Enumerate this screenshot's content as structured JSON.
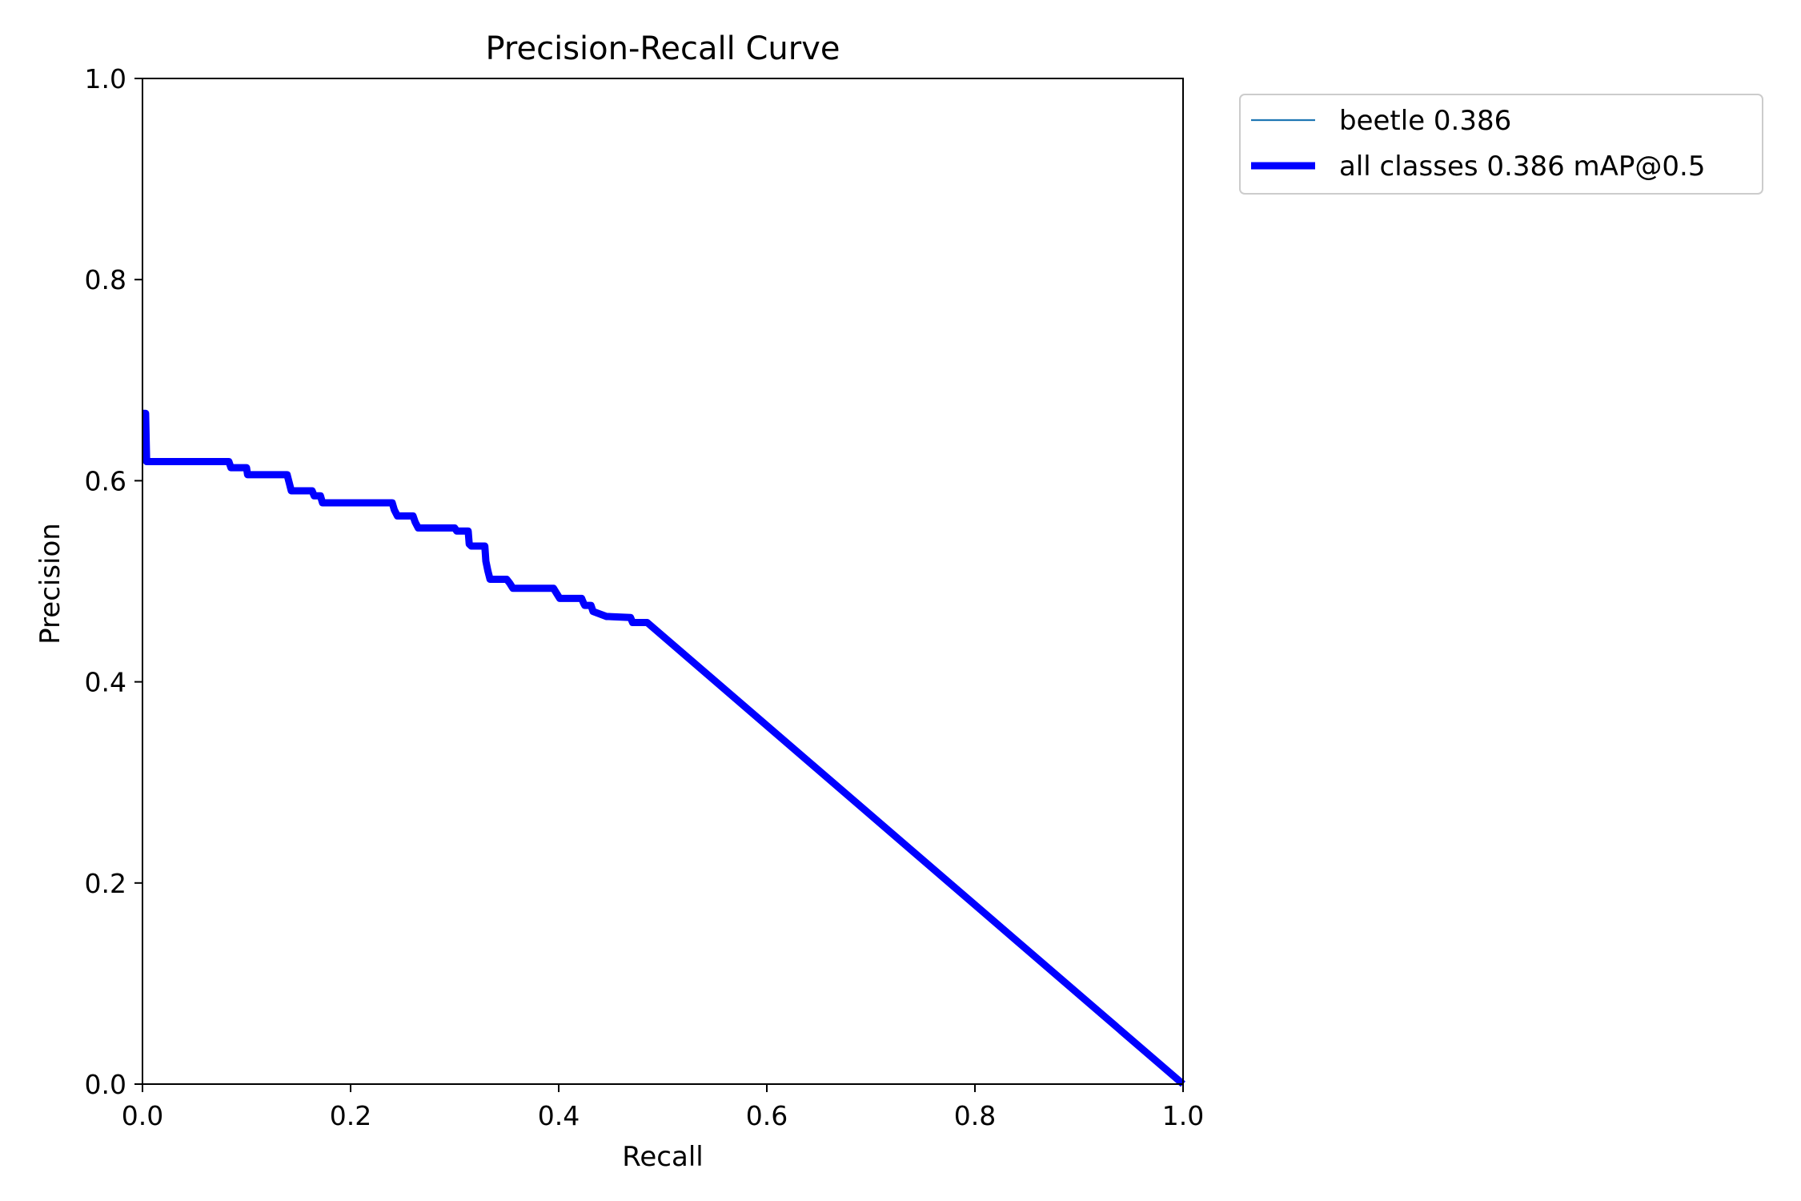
{
  "chart_data": {
    "type": "line",
    "title": "Precision-Recall Curve",
    "xlabel": "Recall",
    "ylabel": "Precision",
    "xlim": [
      0,
      1
    ],
    "ylim": [
      0,
      1
    ],
    "xticks": [
      "0.0",
      "0.2",
      "0.4",
      "0.6",
      "0.8",
      "1.0"
    ],
    "yticks": [
      "0.0",
      "0.2",
      "0.4",
      "0.6",
      "0.8",
      "1.0"
    ],
    "grid": false,
    "legend_position": "outside-top-right",
    "series": [
      {
        "name": "beetle 0.386",
        "color": "#1f77b4",
        "style": "thin",
        "x": [
          0.0,
          0.003,
          0.004,
          0.083,
          0.085,
          0.1,
          0.101,
          0.139,
          0.141,
          0.143,
          0.163,
          0.165,
          0.171,
          0.173,
          0.24,
          0.242,
          0.245,
          0.26,
          0.262,
          0.265,
          0.3,
          0.302,
          0.313,
          0.314,
          0.316,
          0.329,
          0.33,
          0.332,
          0.334,
          0.35,
          0.353,
          0.356,
          0.395,
          0.398,
          0.401,
          0.422,
          0.424,
          0.425,
          0.431,
          0.433,
          0.446,
          0.448,
          0.469,
          0.471,
          0.485,
          1.0
        ],
        "y": [
          0.667,
          0.667,
          0.619,
          0.619,
          0.613,
          0.613,
          0.606,
          0.606,
          0.598,
          0.59,
          0.59,
          0.585,
          0.585,
          0.578,
          0.578,
          0.571,
          0.565,
          0.565,
          0.559,
          0.553,
          0.553,
          0.55,
          0.55,
          0.537,
          0.535,
          0.535,
          0.52,
          0.51,
          0.502,
          0.502,
          0.498,
          0.493,
          0.493,
          0.488,
          0.483,
          0.483,
          0.478,
          0.476,
          0.476,
          0.47,
          0.465,
          0.465,
          0.464,
          0.459,
          0.459,
          0.0
        ]
      },
      {
        "name": "all classes 0.386 mAP@0.5",
        "color": "#0000ff",
        "style": "thick",
        "x": [
          0.0,
          0.003,
          0.004,
          0.083,
          0.085,
          0.1,
          0.101,
          0.139,
          0.141,
          0.143,
          0.163,
          0.165,
          0.171,
          0.173,
          0.24,
          0.242,
          0.245,
          0.26,
          0.262,
          0.265,
          0.3,
          0.302,
          0.313,
          0.314,
          0.316,
          0.329,
          0.33,
          0.332,
          0.334,
          0.35,
          0.353,
          0.356,
          0.395,
          0.398,
          0.401,
          0.422,
          0.424,
          0.425,
          0.431,
          0.433,
          0.446,
          0.448,
          0.469,
          0.471,
          0.485,
          1.0
        ],
        "y": [
          0.667,
          0.667,
          0.619,
          0.619,
          0.613,
          0.613,
          0.606,
          0.606,
          0.598,
          0.59,
          0.59,
          0.585,
          0.585,
          0.578,
          0.578,
          0.571,
          0.565,
          0.565,
          0.559,
          0.553,
          0.553,
          0.55,
          0.55,
          0.537,
          0.535,
          0.535,
          0.52,
          0.51,
          0.502,
          0.502,
          0.498,
          0.493,
          0.493,
          0.488,
          0.483,
          0.483,
          0.478,
          0.476,
          0.476,
          0.47,
          0.465,
          0.465,
          0.464,
          0.459,
          0.459,
          0.0
        ]
      }
    ]
  }
}
